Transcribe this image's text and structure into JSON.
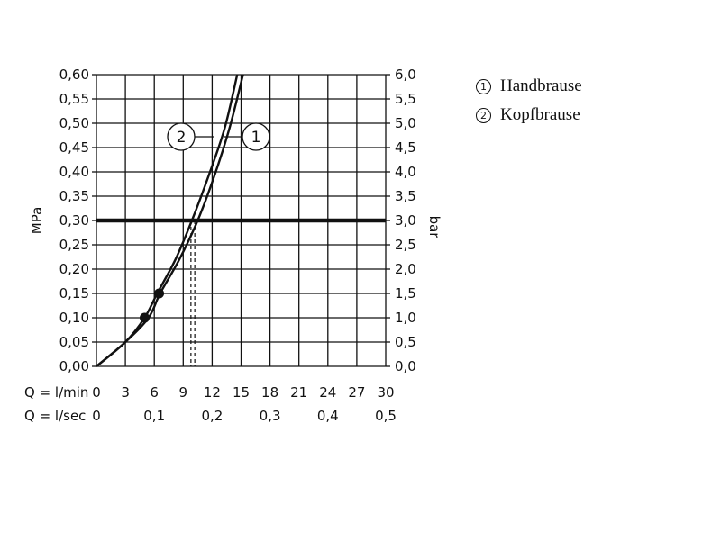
{
  "chart_data": {
    "type": "line",
    "title": "",
    "left_axis": {
      "label": "MPa",
      "range": [
        0,
        0.6
      ],
      "ticks": [
        "0,00",
        "0,05",
        "0,10",
        "0,15",
        "0,20",
        "0,25",
        "0,30",
        "0,35",
        "0,40",
        "0,45",
        "0,50",
        "0,55",
        "0,60"
      ]
    },
    "right_axis": {
      "label": "bar",
      "range": [
        0,
        6
      ],
      "ticks": [
        "0,0",
        "0,5",
        "1,0",
        "1,5",
        "2,0",
        "2,5",
        "3,0",
        "3,5",
        "4,0",
        "4,5",
        "5,0",
        "5,5",
        "6,0"
      ]
    },
    "x_axis": {
      "label": "Q = l/min",
      "range": [
        0,
        30
      ],
      "ticks": [
        "0",
        "3",
        "6",
        "9",
        "12",
        "15",
        "18",
        "21",
        "24",
        "27",
        "30"
      ]
    },
    "x_axis_secondary": {
      "label": "Q = l/sec",
      "ticks": [
        "0",
        "0,1",
        "0,2",
        "0,3",
        "0,4",
        "0,5"
      ]
    },
    "grid": true,
    "reference_line": {
      "y": 0.3
    },
    "series": [
      {
        "name": "Handbrause",
        "marker": "1",
        "x": [
          0,
          3,
          5.4,
          6.6,
          8.6,
          10.5,
          12.2,
          13.8,
          15.2
        ],
        "y": [
          0,
          0.05,
          0.1,
          0.15,
          0.22,
          0.3,
          0.39,
          0.49,
          0.6
        ],
        "operating_point": {
          "x": 6.5,
          "y": 0.15
        },
        "flow_at_reference": 10.2
      },
      {
        "name": "Kopfbrause",
        "marker": "2",
        "x": [
          0,
          3,
          5,
          6.3,
          8.2,
          9.9,
          11.6,
          13.3,
          14.6
        ],
        "y": [
          0,
          0.05,
          0.1,
          0.15,
          0.22,
          0.3,
          0.39,
          0.49,
          0.6
        ],
        "operating_point": {
          "x": 5,
          "y": 0.1
        },
        "flow_at_reference": 9.8
      }
    ],
    "legend_position": "top-right"
  },
  "legend": [
    {
      "marker": "1",
      "label": "Handbrause"
    },
    {
      "marker": "2",
      "label": "Kopfbrause"
    }
  ]
}
